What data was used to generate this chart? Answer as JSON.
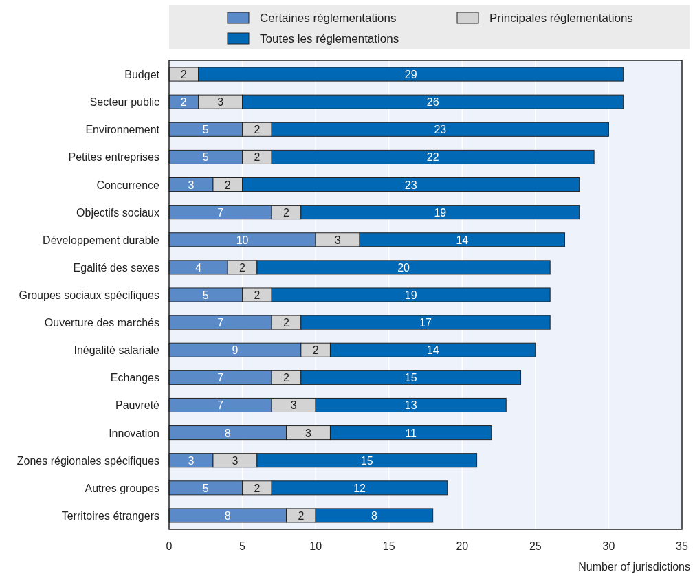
{
  "chart_data": {
    "type": "bar",
    "orientation": "horizontal",
    "stacked": true,
    "xlabel": "Number of jurisdictions",
    "categories": [
      "Budget",
      "Secteur public",
      "Environnement",
      "Petites entreprises",
      "Concurrence",
      "Objectifs sociaux",
      "Développement durable",
      "Egalité des sexes",
      "Groupes sociaux spécifiques",
      "Ouverture des marchés",
      "Inégalité salariale",
      "Echanges",
      "Pauvreté",
      "Innovation",
      "Zones régionales spécifiques",
      "Autres groupes",
      "Territoires étrangers"
    ],
    "series": [
      {
        "name": "Certaines réglementations",
        "color": "#5b8ac9",
        "values": [
          null,
          2,
          5,
          5,
          3,
          7,
          10,
          4,
          5,
          7,
          9,
          7,
          7,
          8,
          3,
          5,
          8
        ]
      },
      {
        "name": "Principales réglementations",
        "color": "#d3d3d3",
        "values": [
          2,
          3,
          2,
          2,
          2,
          2,
          3,
          2,
          2,
          2,
          2,
          2,
          3,
          3,
          3,
          2,
          2
        ]
      },
      {
        "name": "Toutes les réglementations",
        "color": "#0068b4",
        "values": [
          29,
          26,
          23,
          22,
          23,
          19,
          14,
          20,
          19,
          17,
          14,
          15,
          13,
          11,
          15,
          12,
          8
        ]
      }
    ],
    "xlim": [
      0,
      35
    ],
    "xticks": [
      0,
      5,
      10,
      15,
      20,
      25,
      30,
      35
    ],
    "grid": "x",
    "legend": "top",
    "data_labels": true
  }
}
